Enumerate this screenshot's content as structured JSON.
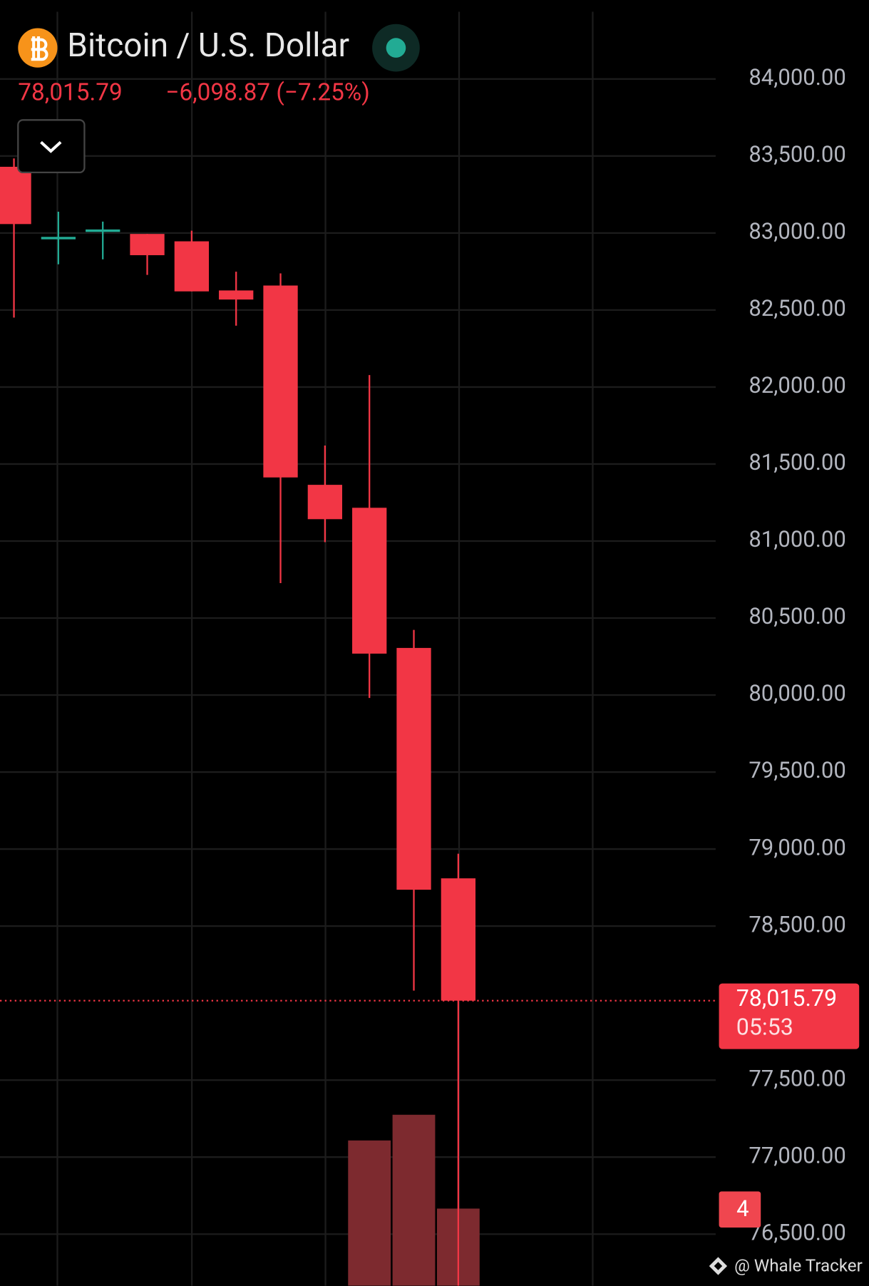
{
  "chart_data": {
    "type": "candlestick",
    "title": "Bitcoin / U.S. Dollar",
    "price_text": "78,015.79",
    "change_text": "−6,098.87 (−7.25%)",
    "categories": [
      null,
      null,
      null,
      null,
      null,
      null,
      null,
      null,
      null,
      null,
      null
    ],
    "open": [
      83430,
      82967,
      83015,
      82994,
      82946,
      82627,
      82659,
      81365,
      81216,
      80306,
      78810
    ],
    "high": [
      83484,
      83138,
      83074,
      82994,
      83015,
      82749,
      82738,
      81620,
      82078,
      80423,
      78970
    ],
    "low": [
      82451,
      82797,
      82829,
      82728,
      82621,
      82398,
      80727,
      80993,
      79981,
      78081,
      76100
    ],
    "close": [
      83058,
      82967,
      83015,
      82856,
      82621,
      82568,
      81413,
      81142,
      80269,
      78736,
      78015.79
    ],
    "up_color": "#22ab94",
    "down_color": "#f23645",
    "volume": [
      null,
      null,
      null,
      null,
      null,
      null,
      null,
      null,
      113,
      133,
      60
    ],
    "volume_color": "#7d2a2f",
    "volume_ylim": [
      0,
      1000
    ],
    "ylim": [
      76165,
      84511
    ],
    "yticks": [
      {
        "value": 84000,
        "label": "84,000.00"
      },
      {
        "value": 83500,
        "label": "83,500.00"
      },
      {
        "value": 83000,
        "label": "83,000.00"
      },
      {
        "value": 82500,
        "label": "82,500.00"
      },
      {
        "value": 82000,
        "label": "82,000.00"
      },
      {
        "value": 81500,
        "label": "81,500.00"
      },
      {
        "value": 81000,
        "label": "81,000.00"
      },
      {
        "value": 80500,
        "label": "80,500.00"
      },
      {
        "value": 80000,
        "label": "80,000.00"
      },
      {
        "value": 79500,
        "label": "79,500.00"
      },
      {
        "value": 79000,
        "label": "79,000.00"
      },
      {
        "value": 78500,
        "label": "78,500.00"
      },
      {
        "value": 77500,
        "label": "77,500.00"
      },
      {
        "value": 77000,
        "label": "77,000.00"
      },
      {
        "value": 76500,
        "label": "76,500.00"
      }
    ],
    "grid": true,
    "price_tag": {
      "value": 78015.79,
      "label": "78,015.79",
      "countdown": "05:53"
    },
    "badge": "4",
    "watermark": "@ Whale Tracker"
  }
}
